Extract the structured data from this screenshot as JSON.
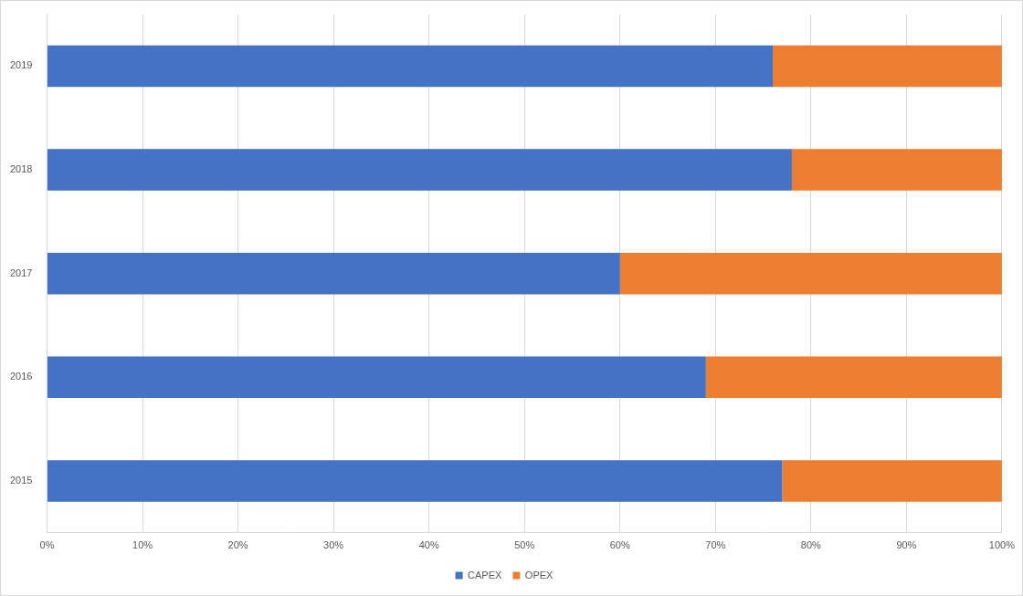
{
  "chart_data": {
    "type": "bar",
    "orientation": "horizontal",
    "stacked": true,
    "categories": [
      "2019",
      "2018",
      "2017",
      "2016",
      "2015"
    ],
    "series": [
      {
        "name": "CAPEX",
        "color": "#4472c4",
        "values": [
          76,
          78,
          60,
          69,
          77
        ]
      },
      {
        "name": "OPEX",
        "color": "#ed7d31",
        "values": [
          24,
          22,
          40,
          31,
          23
        ]
      }
    ],
    "xlim": [
      0,
      100
    ],
    "xticks": [
      {
        "value": 0,
        "label": "0%"
      },
      {
        "value": 10,
        "label": "10%"
      },
      {
        "value": 20,
        "label": "20%"
      },
      {
        "value": 30,
        "label": "30%"
      },
      {
        "value": 40,
        "label": "40%"
      },
      {
        "value": 50,
        "label": "50%"
      },
      {
        "value": 60,
        "label": "60%"
      },
      {
        "value": 70,
        "label": "70%"
      },
      {
        "value": 80,
        "label": "80%"
      },
      {
        "value": 90,
        "label": "90%"
      },
      {
        "value": 100,
        "label": "100%"
      }
    ],
    "grid": true,
    "legend": "bottom"
  }
}
